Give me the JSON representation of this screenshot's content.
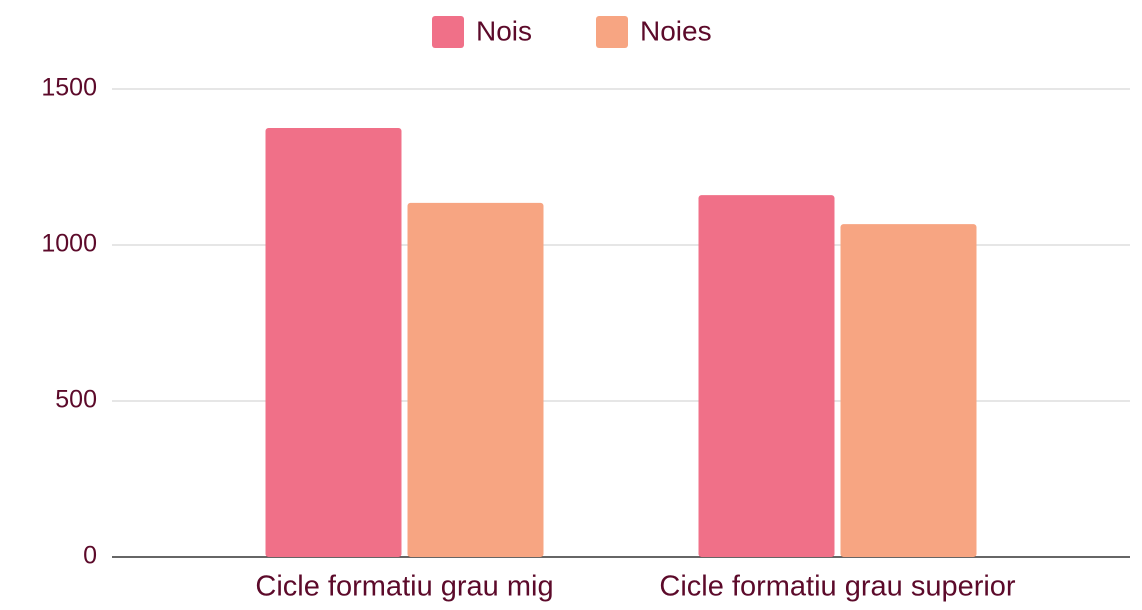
{
  "chart_data": {
    "type": "bar",
    "categories": [
      "Cicle formatiu grau mig",
      "Cicle formatiu grau superior"
    ],
    "series": [
      {
        "name": "Nois",
        "color": "#f07088",
        "values": [
          1375,
          1160
        ]
      },
      {
        "name": "Noies",
        "color": "#f7a582",
        "values": [
          1135,
          1067
        ]
      }
    ],
    "ylim": [
      0,
      1500
    ],
    "yticks": [
      0,
      500,
      1000,
      1500
    ],
    "grid": true,
    "legend": "top"
  }
}
